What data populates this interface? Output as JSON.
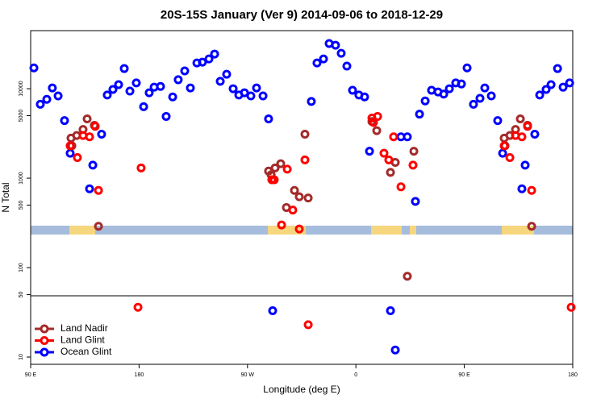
{
  "chart_data": {
    "type": "scatter",
    "title": "20S-15S January (Ver 9)   2014-09-06 to 2018-12-29",
    "x_label": "Longitude (deg E)",
    "y_label": "N Total",
    "xlim": [
      90,
      540
    ],
    "ylim": [
      8.3,
      44600
    ],
    "y_log": true,
    "legend": "bottom-left",
    "xticks": [
      {
        "value": 90,
        "label": "90 E"
      },
      180,
      {
        "value": 270,
        "label": "90 W"
      },
      {
        "value": 360,
        "label": "0"
      },
      {
        "value": 450,
        "label": "90 E"
      },
      {
        "value": 540,
        "label": "180"
      }
    ],
    "yticks": [
      10,
      50,
      100,
      500,
      1000,
      5000,
      10000
    ],
    "series": [
      {
        "name": "Land Nadir",
        "color": "#a52a2a",
        "x": [
          123.5,
          124.2,
          128.2,
          133.5,
          136.9,
          142.9,
          146.3,
          287.5,
          289.6,
          292.9,
          297.6,
          302.3,
          309,
          313,
          317.7,
          320.4,
          373.3,
          377.3,
          388.7,
          392.7,
          402.7,
          408.1,
          483.1,
          483.8,
          487.8,
          492.5,
          496.5,
          502.5,
          505.9
        ],
        "values": [
          2800,
          2300,
          3000,
          3500,
          4600,
          3900,
          290,
          1200,
          1090,
          1300,
          1450,
          470,
          730,
          620,
          3100,
          600,
          4300,
          3400,
          1160,
          1500,
          80,
          2000,
          2800,
          2300,
          3000,
          3500,
          4600,
          3900,
          290
        ]
      },
      {
        "name": "Land Glint",
        "color": "#ff0000",
        "x": [
          122.8,
          128.8,
          133.5,
          138.9,
          143.6,
          146.3,
          179.1,
          181.7,
          290.2,
          292.2,
          298.3,
          303,
          307.6,
          313,
          317.7,
          320.4,
          373.3,
          374.6,
          378,
          383.3,
          387.3,
          391.3,
          397.4,
          407.4,
          483.1,
          487.8,
          492.5,
          497.8,
          502.5,
          505.9,
          538.7
        ],
        "values": [
          2300,
          1700,
          3000,
          2900,
          3800,
          730,
          36,
          1300,
          960,
          960,
          300,
          1260,
          440,
          270,
          1600,
          23,
          4700,
          4200,
          4900,
          1900,
          1600,
          2900,
          800,
          1400,
          2300,
          1700,
          3000,
          2900,
          3800,
          730,
          36
        ]
      },
      {
        "name": "Ocean Glint",
        "color": "#0000ff",
        "x": [
          92.7,
          98,
          103.4,
          108,
          112.8,
          118.1,
          122.8,
          138.9,
          141.6,
          148.9,
          153.6,
          158.3,
          163,
          167.7,
          172.4,
          177.7,
          183.8,
          188.4,
          192.5,
          197.8,
          202.5,
          207.9,
          212.5,
          217.9,
          222.6,
          228,
          232.6,
          238,
          242.7,
          247.4,
          252.7,
          258.1,
          262.8,
          267.5,
          272.8,
          277.5,
          282.9,
          287.5,
          290.9,
          323,
          327.7,
          333.1,
          337.8,
          343.1,
          347.8,
          352.5,
          357.2,
          362.5,
          367.2,
          371.3,
          388.7,
          392.7,
          397.4,
          402.7,
          409.4,
          412.8,
          417.5,
          422.8,
          428.2,
          432.9,
          437.6,
          442.9,
          447.6,
          452.3,
          457.6,
          463,
          467,
          472.4,
          477.7,
          481.8,
          497.8,
          500.5,
          508.5,
          512.6,
          517.9,
          522,
          527.4,
          532,
          537.4
        ],
        "values": [
          17100,
          6700,
          7600,
          10200,
          8300,
          4400,
          1900,
          760,
          1400,
          3100,
          8500,
          9800,
          11100,
          16800,
          9400,
          11600,
          6300,
          9000,
          10400,
          10600,
          4900,
          8100,
          12600,
          15800,
          10200,
          19400,
          19800,
          21500,
          24400,
          12100,
          14500,
          10000,
          8500,
          9000,
          8300,
          10200,
          8300,
          4600,
          33,
          7200,
          19400,
          21500,
          32000,
          30600,
          24900,
          17900,
          9600,
          8500,
          8100,
          2000,
          33,
          12,
          2900,
          2900,
          550,
          5200,
          7300,
          9600,
          9200,
          8700,
          10000,
          11600,
          11300,
          17100,
          6700,
          7800,
          10200,
          8300,
          4400,
          1900,
          760,
          1400,
          3100,
          8500,
          9800,
          11100,
          16800,
          10400,
          11600
        ]
      }
    ]
  }
}
